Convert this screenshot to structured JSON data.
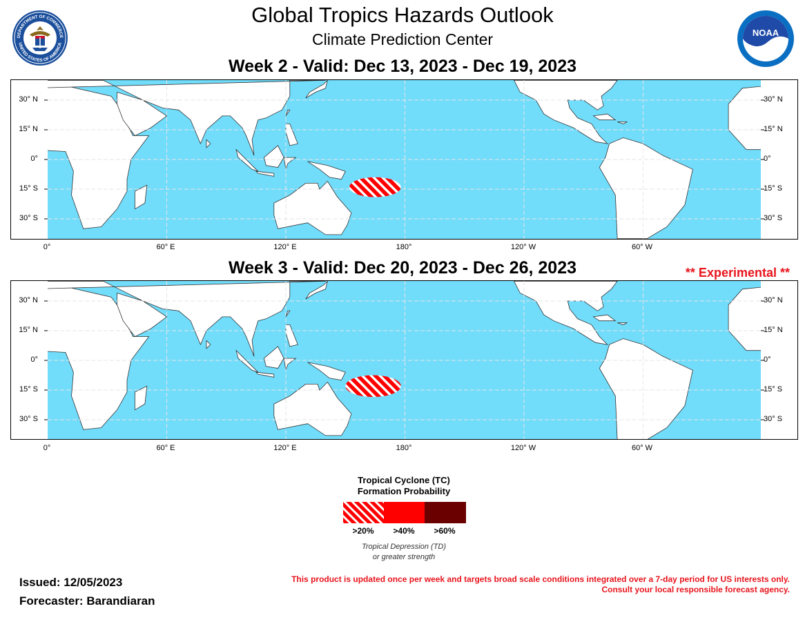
{
  "header": {
    "title": "Global Tropics Hazards Outlook",
    "subtitle": "Climate Prediction Center"
  },
  "logos": {
    "left": {
      "icon": "department-of-commerce-seal-icon",
      "text": "DEPARTMENT OF COMMERCE · UNITED STATES OF AMERICA"
    },
    "right": {
      "icon": "noaa-logo-icon",
      "text": "NOAA"
    }
  },
  "maps": [
    {
      "title": "Week 2 - Valid: Dec 13, 2023 - Dec 19, 2023",
      "hazards": [
        {
          "type": "TC formation",
          "probability": ">20%",
          "center_lon": 165,
          "center_lat": -14,
          "lon_radius": 13,
          "lat_radius": 5
        }
      ]
    },
    {
      "title": "Week 3 - Valid: Dec 20, 2023 - Dec 26, 2023",
      "note": "** Experimental **",
      "hazards": [
        {
          "type": "TC formation",
          "probability": ">20%",
          "center_lon": 164,
          "center_lat": -13,
          "lon_radius": 14,
          "lat_radius": 5.5
        }
      ]
    }
  ],
  "axes": {
    "lat_labels_left": [
      "30° N",
      "15° N",
      "0°",
      "15° S",
      "30° S"
    ],
    "lat_labels_right": [
      "30° N",
      "15° N",
      "0°",
      "15° S",
      "30° S"
    ],
    "lon_labels": [
      "0°",
      "60° E",
      "120° E",
      "180°",
      "120° W",
      "60° W"
    ]
  },
  "colors": {
    "ocean": "#72dcfb",
    "land": "#ffffff",
    "hazard": "#ff0000",
    "hazard_dark": "#6b0000",
    "grid": "#e6e6e6"
  },
  "legend": {
    "title_line1": "Tropical Cyclone (TC)",
    "title_line2": "Formation Probability",
    "levels": [
      ">20%",
      ">40%",
      ">60%"
    ],
    "note_line1": "Tropical Depression (TD)",
    "note_line2": "or greater strength"
  },
  "footer": {
    "issued": "Issued: 12/05/2023",
    "forecaster": "Forecaster: Barandiaran",
    "disclaimer_line1": "This product is updated once per week and targets broad scale conditions integrated over a 7-day period for US interests only.",
    "disclaimer_line2": "Consult your local responsible forecast agency."
  }
}
